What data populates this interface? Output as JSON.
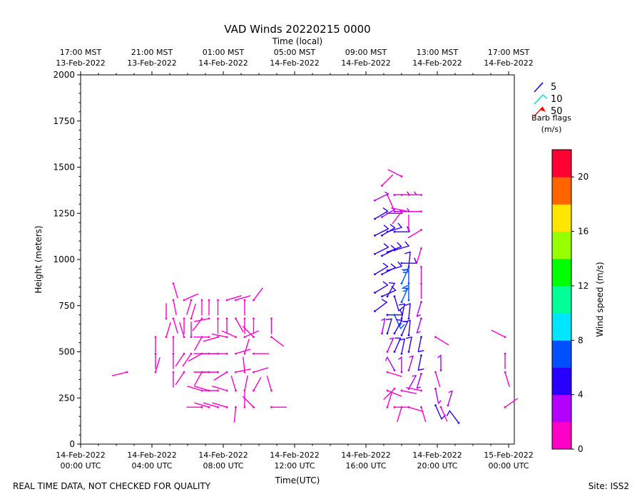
{
  "chart_data": {
    "type": "scatter",
    "title": "VAD Winds 20220215 0000",
    "xlabel": "Time(UTC)",
    "ylabel": "Height (meters)",
    "top_xlabel": "Time (local)",
    "xlim_hours": [
      0,
      24.4
    ],
    "ylim": [
      0,
      2000
    ],
    "yticks": [
      "0",
      "250",
      "500",
      "750",
      "1000",
      "1250",
      "1500",
      "1750",
      "2000"
    ],
    "xticks_utc": [
      {
        "l1": "14-Feb-2022",
        "l2": "00:00 UTC"
      },
      {
        "l1": "14-Feb-2022",
        "l2": "04:00 UTC"
      },
      {
        "l1": "14-Feb-2022",
        "l2": "08:00 UTC"
      },
      {
        "l1": "14-Feb-2022",
        "l2": "12:00 UTC"
      },
      {
        "l1": "14-Feb-2022",
        "l2": "16:00 UTC"
      },
      {
        "l1": "14-Feb-2022",
        "l2": "20:00 UTC"
      },
      {
        "l1": "15-Feb-2022",
        "l2": "00:00 UTC"
      }
    ],
    "xticks_local": [
      {
        "l1": "17:00 MST",
        "l2": "13-Feb-2022"
      },
      {
        "l1": "21:00 MST",
        "l2": "13-Feb-2022"
      },
      {
        "l1": "01:00 MST",
        "l2": "14-Feb-2022"
      },
      {
        "l1": "05:00 MST",
        "l2": "14-Feb-2022"
      },
      {
        "l1": "09:00 MST",
        "l2": "14-Feb-2022"
      },
      {
        "l1": "13:00 MST",
        "l2": "14-Feb-2022"
      },
      {
        "l1": "17:00 MST",
        "l2": "14-Feb-2022"
      }
    ],
    "legend": {
      "entries": [
        {
          "label": "5",
          "color": "#0000ff"
        },
        {
          "label": "10",
          "color": "#00e0c0"
        },
        {
          "label": "50",
          "color": "#ff0000"
        }
      ],
      "title_line1": "Barb flags",
      "title_line2": "(m/s)",
      "placement": "top-right"
    },
    "colorbar": {
      "label": "Wind speed (m/s)",
      "range": [
        0,
        22
      ],
      "ticks": [
        "0",
        "4",
        "8",
        "12",
        "16",
        "20"
      ],
      "colors": [
        "#ff00c8",
        "#b400ff",
        "#2800ff",
        "#0050ff",
        "#00e6ff",
        "#00ff96",
        "#00ff00",
        "#96ff00",
        "#ffe600",
        "#ff6400",
        "#ff0032"
      ]
    },
    "barbs": [
      {
        "x": 2.6,
        "y": 390,
        "u": -1.2,
        "v": -0.3,
        "s": 1.5
      },
      {
        "x": 4.2,
        "y": 390,
        "u": 0.3,
        "v": 1.0,
        "s": 1.5
      },
      {
        "x": 4.2,
        "y": 490,
        "u": 0.0,
        "v": -1.0,
        "s": 1.5
      },
      {
        "x": 4.2,
        "y": 580,
        "u": 0.0,
        "v": -1.0,
        "s": 1.5
      },
      {
        "x": 4.8,
        "y": 580,
        "u": 0.3,
        "v": 1.0,
        "s": 1.5
      },
      {
        "x": 4.8,
        "y": 680,
        "u": 0.0,
        "v": 1.0,
        "s": 1.5
      },
      {
        "x": 5.2,
        "y": 390,
        "u": 0.0,
        "v": -1.0,
        "s": 1.5
      },
      {
        "x": 5.2,
        "y": 490,
        "u": 0.0,
        "v": -1.0,
        "s": 1.5
      },
      {
        "x": 5.2,
        "y": 580,
        "u": 0.0,
        "v": -1.0,
        "s": 1.5
      },
      {
        "x": 5.2,
        "y": 680,
        "u": 0.3,
        "v": -1.0,
        "s": 1.5
      },
      {
        "x": 5.2,
        "y": 780,
        "u": 0.2,
        "v": -1.0,
        "s": 1.5
      },
      {
        "x": 5.2,
        "y": 870,
        "u": 0.3,
        "v": -1.0,
        "s": 1.5
      },
      {
        "x": 5.8,
        "y": 390,
        "u": -0.6,
        "v": -0.9,
        "s": 1.5
      },
      {
        "x": 5.8,
        "y": 490,
        "u": -0.6,
        "v": -0.9,
        "s": 1.5
      },
      {
        "x": 5.8,
        "y": 580,
        "u": -0.3,
        "v": 1.0,
        "s": 1.5
      },
      {
        "x": 5.8,
        "y": 680,
        "u": 0.0,
        "v": -1.0,
        "s": 1.5
      },
      {
        "x": 5.8,
        "y": 780,
        "u": 0.9,
        "v": 0.4,
        "s": 1.5
      },
      {
        "x": 6.2,
        "y": 490,
        "u": -0.6,
        "v": -0.9,
        "s": 1.5
      },
      {
        "x": 6.2,
        "y": 580,
        "u": 0.0,
        "v": 1.0,
        "s": 1.5
      },
      {
        "x": 6.2,
        "y": 680,
        "u": 0.3,
        "v": 1.0,
        "s": 1.5
      },
      {
        "x": 6.2,
        "y": 780,
        "u": -0.3,
        "v": -1.0,
        "s": 1.5
      },
      {
        "x": 6.8,
        "y": 200,
        "u": -1.0,
        "v": 0.0,
        "s": 1.5
      },
      {
        "x": 6.8,
        "y": 290,
        "u": -1.0,
        "v": 0.3,
        "s": 1.5
      },
      {
        "x": 6.8,
        "y": 390,
        "u": -0.5,
        "v": -0.9,
        "s": 1.5
      },
      {
        "x": 6.8,
        "y": 490,
        "u": -0.9,
        "v": -0.5,
        "s": 1.5
      },
      {
        "x": 6.8,
        "y": 580,
        "u": -0.5,
        "v": -0.9,
        "s": 1.5
      },
      {
        "x": 6.8,
        "y": 680,
        "u": -0.6,
        "v": -0.8,
        "s": 1.5
      },
      {
        "x": 6.8,
        "y": 780,
        "u": 0.0,
        "v": -1.0,
        "s": 1.5
      },
      {
        "x": 7.2,
        "y": 200,
        "u": -1.0,
        "v": 0.3,
        "s": 1.5
      },
      {
        "x": 7.2,
        "y": 290,
        "u": -1.0,
        "v": 0.3,
        "s": 1.5
      },
      {
        "x": 7.2,
        "y": 390,
        "u": -1.0,
        "v": 0.0,
        "s": 1.5
      },
      {
        "x": 7.2,
        "y": 490,
        "u": -1.0,
        "v": 0.0,
        "s": 1.5
      },
      {
        "x": 7.2,
        "y": 580,
        "u": -1.0,
        "v": 0.0,
        "s": 1.5
      },
      {
        "x": 7.2,
        "y": 680,
        "u": -1.0,
        "v": -0.2,
        "s": 1.5
      },
      {
        "x": 7.2,
        "y": 780,
        "u": 0.0,
        "v": -1.0,
        "s": 1.5
      },
      {
        "x": 7.7,
        "y": 200,
        "u": -1.0,
        "v": 0.3,
        "s": 1.5
      },
      {
        "x": 7.7,
        "y": 290,
        "u": -1.0,
        "v": 0.0,
        "s": 1.5
      },
      {
        "x": 7.7,
        "y": 390,
        "u": -1.0,
        "v": 0.0,
        "s": 1.5
      },
      {
        "x": 7.7,
        "y": 490,
        "u": -1.0,
        "v": 0.0,
        "s": 1.5
      },
      {
        "x": 7.7,
        "y": 580,
        "u": -1.0,
        "v": -0.3,
        "s": 1.5
      },
      {
        "x": 7.7,
        "y": 680,
        "u": 0.0,
        "v": -1.0,
        "s": 1.5
      },
      {
        "x": 7.7,
        "y": 780,
        "u": 0.0,
        "v": -1.0,
        "s": 1.5
      },
      {
        "x": 8.2,
        "y": 200,
        "u": -1.0,
        "v": 0.3,
        "s": 1.5
      },
      {
        "x": 8.2,
        "y": 290,
        "u": -1.0,
        "v": 0.3,
        "s": 1.5
      },
      {
        "x": 8.2,
        "y": 390,
        "u": -0.8,
        "v": -0.5,
        "s": 1.5
      },
      {
        "x": 8.2,
        "y": 490,
        "u": -1.0,
        "v": 0.0,
        "s": 1.5
      },
      {
        "x": 8.2,
        "y": 580,
        "u": -1.0,
        "v": 0.2,
        "s": 1.5
      },
      {
        "x": 8.2,
        "y": 680,
        "u": 0.0,
        "v": -1.0,
        "s": 1.5
      },
      {
        "x": 8.2,
        "y": 780,
        "u": 1.0,
        "v": 0.3,
        "s": 1.5
      },
      {
        "x": 8.7,
        "y": 200,
        "u": -0.1,
        "v": -1.0,
        "s": 1.5
      },
      {
        "x": 8.7,
        "y": 290,
        "u": -0.3,
        "v": 1.0,
        "s": 1.5
      },
      {
        "x": 8.7,
        "y": 390,
        "u": 1.0,
        "v": 0.2,
        "s": 1.5
      },
      {
        "x": 8.7,
        "y": 490,
        "u": 1.0,
        "v": 0.3,
        "s": 1.5
      },
      {
        "x": 8.7,
        "y": 580,
        "u": -0.9,
        "v": 0.4,
        "s": 1.5
      },
      {
        "x": 8.7,
        "y": 680,
        "u": 0.5,
        "v": -0.9,
        "s": 1.5
      },
      {
        "x": 8.7,
        "y": 780,
        "u": 1.0,
        "v": 0.3,
        "s": 1.5
      },
      {
        "x": 9.2,
        "y": 200,
        "u": 0.0,
        "v": 1.0,
        "s": 1.5
      },
      {
        "x": 9.2,
        "y": 290,
        "u": 0.2,
        "v": 1.0,
        "s": 1.5
      },
      {
        "x": 9.2,
        "y": 390,
        "u": -0.1,
        "v": 1.0,
        "s": 1.5
      },
      {
        "x": 9.2,
        "y": 490,
        "u": 0.3,
        "v": 1.0,
        "s": 1.5
      },
      {
        "x": 9.2,
        "y": 580,
        "u": 0.9,
        "v": 0.4,
        "s": 1.5
      },
      {
        "x": 9.2,
        "y": 680,
        "u": 0.0,
        "v": -1.0,
        "s": 1.5
      },
      {
        "x": 9.2,
        "y": 780,
        "u": 0.0,
        "v": -1.0,
        "s": 1.5
      },
      {
        "x": 9.7,
        "y": 200,
        "u": -0.7,
        "v": 0.7,
        "s": 1.5
      },
      {
        "x": 9.7,
        "y": 290,
        "u": 0.5,
        "v": 0.9,
        "s": 1.5
      },
      {
        "x": 9.7,
        "y": 390,
        "u": 1.0,
        "v": 0.3,
        "s": 1.5
      },
      {
        "x": 9.7,
        "y": 490,
        "u": 1.0,
        "v": 0.0,
        "s": 1.5
      },
      {
        "x": 9.7,
        "y": 580,
        "u": -0.7,
        "v": 0.7,
        "s": 1.5
      },
      {
        "x": 9.7,
        "y": 680,
        "u": 0.0,
        "v": -1.0,
        "s": 1.5
      },
      {
        "x": 9.7,
        "y": 780,
        "u": 0.6,
        "v": 0.8,
        "s": 1.5
      },
      {
        "x": 10.7,
        "y": 200,
        "u": 1.0,
        "v": 0.0,
        "s": 1.5
      },
      {
        "x": 10.7,
        "y": 290,
        "u": -0.3,
        "v": 1.0,
        "s": 1.5
      },
      {
        "x": 10.7,
        "y": 580,
        "u": 0.8,
        "v": -0.6,
        "s": 1.5
      },
      {
        "x": 10.7,
        "y": 680,
        "u": 0.0,
        "v": -1.0,
        "s": 1.5
      },
      {
        "x": 16.5,
        "y": 1320,
        "u": 1.0,
        "v": 0.5,
        "s": 3.0
      },
      {
        "x": 16.5,
        "y": 1220,
        "u": 1.0,
        "v": 0.6,
        "s": 5.0
      },
      {
        "x": 16.5,
        "y": 1130,
        "u": 1.0,
        "v": 0.5,
        "s": 5.0
      },
      {
        "x": 16.5,
        "y": 1030,
        "u": 1.0,
        "v": 0.5,
        "s": 5.0
      },
      {
        "x": 16.5,
        "y": 920,
        "u": 1.0,
        "v": 0.6,
        "s": 5.0
      },
      {
        "x": 16.5,
        "y": 820,
        "u": 1.0,
        "v": 0.6,
        "s": 5.0
      },
      {
        "x": 16.5,
        "y": 720,
        "u": 0.8,
        "v": 0.6,
        "s": 5.0
      },
      {
        "x": 16.9,
        "y": 1400,
        "u": 0.7,
        "v": 0.7,
        "s": 1.5
      },
      {
        "x": 16.9,
        "y": 1230,
        "u": 1.0,
        "v": 0.6,
        "s": 3.0
      },
      {
        "x": 16.9,
        "y": 1130,
        "u": 1.0,
        "v": 0.6,
        "s": 5.0
      },
      {
        "x": 16.9,
        "y": 1020,
        "u": 1.0,
        "v": 0.5,
        "s": 5.0
      },
      {
        "x": 16.9,
        "y": 920,
        "u": 1.0,
        "v": 0.5,
        "s": 5.0
      },
      {
        "x": 16.9,
        "y": 800,
        "u": 0.9,
        "v": 0.4,
        "s": 5.0
      },
      {
        "x": 16.9,
        "y": 600,
        "u": 0.2,
        "v": 1.0,
        "s": 3.0
      },
      {
        "x": 17.2,
        "y": 1350,
        "u": 0.4,
        "v": -0.9,
        "s": 1.5
      },
      {
        "x": 17.2,
        "y": 1250,
        "u": 1.0,
        "v": 0.0,
        "s": 3.0
      },
      {
        "x": 17.2,
        "y": 1150,
        "u": 1.0,
        "v": 0.3,
        "s": 5.0
      },
      {
        "x": 17.2,
        "y": 1040,
        "u": 1.0,
        "v": 0.4,
        "s": 5.0
      },
      {
        "x": 17.2,
        "y": 940,
        "u": 1.0,
        "v": 0.3,
        "s": 5.0
      },
      {
        "x": 17.2,
        "y": 800,
        "u": 0.5,
        "v": 0.9,
        "s": 5.0
      },
      {
        "x": 17.2,
        "y": 700,
        "u": 1.0,
        "v": 0.0,
        "s": 5.0
      },
      {
        "x": 17.2,
        "y": 600,
        "u": 0.3,
        "v": 1.0,
        "s": 5.0
      },
      {
        "x": 17.2,
        "y": 500,
        "u": 0.4,
        "v": 0.9,
        "s": 3.0
      },
      {
        "x": 17.2,
        "y": 390,
        "u": 1.0,
        "v": -0.3,
        "s": 1.5
      },
      {
        "x": 17.2,
        "y": 290,
        "u": 1.0,
        "v": -0.4,
        "s": 1.5
      },
      {
        "x": 17.2,
        "y": 200,
        "u": 0.3,
        "v": 1.0,
        "s": 1.5
      },
      {
        "x": 17.6,
        "y": 1350,
        "u": 1.0,
        "v": 0.0,
        "s": 3.0
      },
      {
        "x": 17.6,
        "y": 1260,
        "u": 1.0,
        "v": 0.0,
        "s": 3.0
      },
      {
        "x": 17.6,
        "y": 1150,
        "u": 1.0,
        "v": 0.0,
        "s": 5.0
      },
      {
        "x": 17.6,
        "y": 1050,
        "u": 1.0,
        "v": 0.3,
        "s": 5.0
      },
      {
        "x": 17.6,
        "y": 800,
        "u": 0.3,
        "v": -1.0,
        "s": 5.0
      },
      {
        "x": 17.6,
        "y": 700,
        "u": 0.4,
        "v": -0.9,
        "s": 7.5
      },
      {
        "x": 17.6,
        "y": 600,
        "u": 0.5,
        "v": 0.9,
        "s": 5.0
      },
      {
        "x": 17.6,
        "y": 500,
        "u": 0.4,
        "v": 0.9,
        "s": 5.0
      },
      {
        "x": 17.6,
        "y": 400,
        "u": -0.5,
        "v": 0.9,
        "s": 3.0
      },
      {
        "x": 17.6,
        "y": 300,
        "u": -0.7,
        "v": -0.7,
        "s": 1.5
      },
      {
        "x": 17.6,
        "y": 200,
        "u": 1.0,
        "v": 0.0,
        "s": 1.5
      },
      {
        "x": 18.0,
        "y": 1450,
        "u": -1.0,
        "v": 0.5,
        "s": 1.5
      },
      {
        "x": 18.0,
        "y": 1350,
        "u": 1.0,
        "v": 0.0,
        "s": 3.0
      },
      {
        "x": 18.0,
        "y": 1260,
        "u": -0.6,
        "v": -0.8,
        "s": 1.5
      },
      {
        "x": 18.0,
        "y": 980,
        "u": 1.0,
        "v": 0.0,
        "s": 5.0
      },
      {
        "x": 18.0,
        "y": 870,
        "u": 0.4,
        "v": 0.9,
        "s": 7.5
      },
      {
        "x": 18.0,
        "y": 770,
        "u": 0.4,
        "v": 0.9,
        "s": 7.5
      },
      {
        "x": 18.0,
        "y": 680,
        "u": 0.2,
        "v": 1.0,
        "s": 5.0
      },
      {
        "x": 18.0,
        "y": 590,
        "u": 0.4,
        "v": 0.9,
        "s": 5.0
      },
      {
        "x": 18.0,
        "y": 490,
        "u": 0.2,
        "v": 1.0,
        "s": 5.0
      },
      {
        "x": 18.0,
        "y": 390,
        "u": 0.0,
        "v": 1.0,
        "s": 3.0
      },
      {
        "x": 18.0,
        "y": 290,
        "u": 1.0,
        "v": -0.2,
        "s": 1.5
      },
      {
        "x": 18.0,
        "y": 200,
        "u": -0.3,
        "v": -1.0,
        "s": 1.5
      },
      {
        "x": 18.4,
        "y": 1350,
        "u": -1.0,
        "v": 0.0,
        "s": 1.5
      },
      {
        "x": 18.4,
        "y": 1260,
        "u": -1.0,
        "v": 0.2,
        "s": 1.5
      },
      {
        "x": 18.4,
        "y": 1160,
        "u": 0.0,
        "v": 1.0,
        "s": 1.5
      },
      {
        "x": 18.4,
        "y": 960,
        "u": 0.1,
        "v": 1.0,
        "s": 5.0
      },
      {
        "x": 18.4,
        "y": 870,
        "u": 0.0,
        "v": 1.0,
        "s": 7.5
      },
      {
        "x": 18.4,
        "y": 780,
        "u": 0.0,
        "v": 1.0,
        "s": 7.5
      },
      {
        "x": 18.4,
        "y": 680,
        "u": 0.1,
        "v": 1.0,
        "s": 5.0
      },
      {
        "x": 18.4,
        "y": 590,
        "u": 0.1,
        "v": 1.0,
        "s": 5.0
      },
      {
        "x": 18.4,
        "y": 500,
        "u": 0.2,
        "v": 1.0,
        "s": 5.0
      },
      {
        "x": 18.4,
        "y": 400,
        "u": 0.3,
        "v": 1.0,
        "s": 3.0
      },
      {
        "x": 18.4,
        "y": 300,
        "u": 0.5,
        "v": 0.9,
        "s": 3.0
      },
      {
        "x": 18.4,
        "y": 200,
        "u": 1.0,
        "v": -0.3,
        "s": 1.5
      },
      {
        "x": 19.1,
        "y": 1350,
        "u": -1.0,
        "v": 0.0,
        "s": 1.5
      },
      {
        "x": 19.1,
        "y": 1260,
        "u": -1.0,
        "v": 0.0,
        "s": 1.5
      },
      {
        "x": 19.1,
        "y": 1160,
        "u": -1.0,
        "v": -0.6,
        "s": 1.5
      },
      {
        "x": 19.1,
        "y": 1060,
        "u": -0.3,
        "v": -1.0,
        "s": 1.5
      },
      {
        "x": 19.1,
        "y": 960,
        "u": 0.0,
        "v": -1.0,
        "s": 1.5
      },
      {
        "x": 19.1,
        "y": 870,
        "u": 0.0,
        "v": -1.0,
        "s": 1.5
      },
      {
        "x": 19.1,
        "y": 770,
        "u": -0.3,
        "v": -1.0,
        "s": 3.0
      },
      {
        "x": 19.1,
        "y": 680,
        "u": -0.3,
        "v": -1.0,
        "s": 3.0
      },
      {
        "x": 19.1,
        "y": 580,
        "u": -0.2,
        "v": -1.0,
        "s": 5.0
      },
      {
        "x": 19.1,
        "y": 480,
        "u": -0.2,
        "v": -1.0,
        "s": 5.0
      },
      {
        "x": 19.1,
        "y": 380,
        "u": -0.3,
        "v": -1.0,
        "s": 3.0
      },
      {
        "x": 19.1,
        "y": 290,
        "u": -1.0,
        "v": 0.2,
        "s": 1.5
      },
      {
        "x": 19.1,
        "y": 200,
        "u": 0.3,
        "v": -1.0,
        "s": 1.5
      },
      {
        "x": 19.9,
        "y": 580,
        "u": 1.0,
        "v": -0.6,
        "s": 1.5
      },
      {
        "x": 19.9,
        "y": 390,
        "u": 0.3,
        "v": -1.0,
        "s": 1.5
      },
      {
        "x": 19.9,
        "y": 300,
        "u": 0.2,
        "v": -1.0,
        "s": 3.0
      },
      {
        "x": 19.9,
        "y": 210,
        "u": 0.4,
        "v": -0.9,
        "s": 5.0
      },
      {
        "x": 20.2,
        "y": 400,
        "u": 0.0,
        "v": 1.0,
        "s": 3.0
      },
      {
        "x": 20.2,
        "y": 200,
        "u": 0.4,
        "v": -0.9,
        "s": 1.5
      },
      {
        "x": 20.6,
        "y": 210,
        "u": 0.3,
        "v": 1.0,
        "s": 3.0
      },
      {
        "x": 21.2,
        "y": 115,
        "u": -0.6,
        "v": 0.8,
        "s": 5.0
      },
      {
        "x": 23.8,
        "y": 580,
        "u": -1.0,
        "v": 0.5,
        "s": 1.5
      },
      {
        "x": 23.8,
        "y": 490,
        "u": 0.0,
        "v": -1.0,
        "s": 1.5
      },
      {
        "x": 23.8,
        "y": 390,
        "u": 0.3,
        "v": -1.0,
        "s": 1.5
      },
      {
        "x": 23.8,
        "y": 200,
        "u": 1.0,
        "v": 0.7,
        "s": 1.5
      }
    ]
  },
  "footer": {
    "left": "REAL TIME DATA, NOT CHECKED FOR QUALITY",
    "right": "Site: ISS2"
  }
}
